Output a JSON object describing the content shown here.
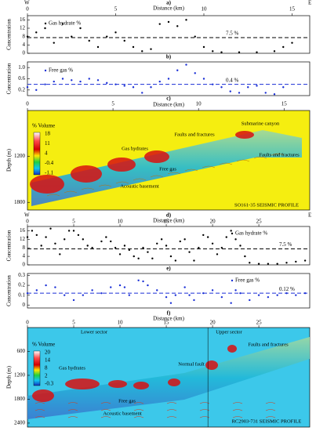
{
  "chart_data": [
    {
      "type": "scatter",
      "panel": "a)",
      "xlabel": "Distance (km)",
      "ends": [
        "W",
        "E"
      ],
      "ylabel": "Concentration",
      "legend": "Gas hydrate %",
      "color": "#000000",
      "x": [
        0,
        0.5,
        1,
        1.5,
        2,
        2.5,
        3,
        3.5,
        4,
        4.5,
        5,
        5.5,
        6,
        6.5,
        7,
        7.5,
        8,
        8.5,
        9,
        9.5,
        10,
        10.5,
        11,
        12,
        13,
        14,
        14.5,
        15
      ],
      "values": [
        8,
        10,
        12,
        5,
        14,
        8,
        12,
        6,
        3,
        8,
        10,
        6,
        3,
        1,
        2,
        14,
        15,
        13,
        16,
        8,
        3,
        1,
        0.5,
        0.5,
        0.5,
        1,
        3,
        5
      ],
      "xlim": [
        0,
        16
      ],
      "xticks": [
        0,
        5,
        10,
        15
      ],
      "ylim": [
        0,
        18
      ],
      "yticks": [
        0,
        4,
        8,
        12,
        16
      ],
      "ref_line": 7.5,
      "ref_label": "7.5 %"
    },
    {
      "type": "scatter",
      "panel": "b)",
      "ylabel": "Concentration",
      "legend": "Free gas %",
      "color": "#1a2fd6",
      "x": [
        0,
        0.5,
        1,
        1.5,
        2,
        2.5,
        3,
        3.5,
        4,
        4.5,
        5,
        5.5,
        6,
        6.5,
        7,
        7.5,
        8,
        8.5,
        9,
        9.5,
        10,
        10.5,
        11,
        11.5,
        12,
        12.5,
        13,
        13.5,
        14,
        14.5
      ],
      "values": [
        0.3,
        0.2,
        0.4,
        0.5,
        0.6,
        0.55,
        0.5,
        0.6,
        0.55,
        0.45,
        0.4,
        0.35,
        0.3,
        0.1,
        0.3,
        0.5,
        0.6,
        0.9,
        1.1,
        0.8,
        0.6,
        0.4,
        0.3,
        0.15,
        0.1,
        0.3,
        0.35,
        0.1,
        0.05,
        0.3
      ],
      "xlim": [
        0,
        16
      ],
      "ylim": [
        0,
        1.2
      ],
      "yticks": [
        0.2,
        0.6,
        {
          "value": 1,
          "label": "1.0"
        }
      ],
      "ref_line": 0.4,
      "ref_label": "0.4 %"
    },
    {
      "type": "seismic",
      "panel": "c)",
      "xlabel": "Distance (km)",
      "ylabel": "Depth (m)",
      "background": "#f5ee10",
      "xlim": [
        0,
        16.5
      ],
      "xticks": [
        0,
        5,
        10,
        15
      ],
      "ylim": [
        1900,
        600
      ],
      "yticks": [
        1200,
        1800
      ],
      "colorbar": {
        "title": "% Volume",
        "ticks": [
          18,
          11,
          4,
          -0.4,
          -1.1
        ]
      },
      "annotations": [
        "Gas hydrates",
        "Faults and fractures",
        "Submarine canyon",
        "Faults and fractures",
        "Free gas",
        "Acoustic basement",
        "SO161-35 SEISMIC PROFILE"
      ]
    },
    {
      "type": "scatter",
      "panel": "d)",
      "xlabel": "Distance (km)",
      "ends": [
        "W",
        "E"
      ],
      "ylabel": "Concentration",
      "legend": "Gas hydrate %",
      "color": "#000000",
      "x": [
        0,
        0.5,
        1,
        1.5,
        2,
        2.5,
        3,
        3.5,
        4,
        4.5,
        5,
        5.5,
        6,
        6.5,
        7,
        8,
        8.5,
        9,
        9.5,
        10,
        10.5,
        11,
        11.5,
        12,
        12.5,
        13,
        13.5,
        14,
        14.5,
        15,
        15.5,
        16,
        16.5,
        17,
        17.5,
        18,
        18.5,
        19,
        19.5,
        20,
        20.5,
        21,
        21.5,
        22,
        22.5,
        23,
        23.5,
        24,
        25,
        26,
        27,
        28,
        29,
        30
      ],
      "values": [
        13,
        16,
        14,
        9,
        13,
        17,
        10,
        5,
        12,
        16,
        16,
        14,
        12,
        9,
        8,
        11,
        13,
        11,
        8,
        5,
        9,
        7,
        4,
        3,
        8,
        6,
        3,
        10,
        12,
        9,
        4,
        2,
        11,
        12,
        6,
        2,
        8,
        14,
        13,
        10,
        5,
        8,
        13,
        16,
        12,
        9,
        4,
        1,
        0.5,
        0.5,
        0.5,
        1,
        1.5,
        2
      ],
      "xlim": [
        0,
        30.5
      ],
      "xticks": [
        0,
        5,
        10,
        15,
        20,
        25
      ],
      "ylim": [
        0,
        18
      ],
      "yticks": [
        0,
        4,
        8,
        12,
        16
      ],
      "ref_line": 7.5,
      "ref_label": "7.5 %"
    },
    {
      "type": "scatter",
      "panel": "e)",
      "ylabel": "Concentration",
      "legend": "Free gas %",
      "color": "#1a2fd6",
      "x": [
        0,
        1,
        2,
        3,
        4,
        5,
        6,
        7,
        8,
        9,
        10,
        10.5,
        11,
        12,
        12.5,
        13,
        14,
        15,
        15.5,
        16,
        17,
        17.5,
        18,
        19,
        20,
        21,
        22,
        22.5,
        23,
        24,
        25,
        26,
        27,
        28,
        29,
        30
      ],
      "values": [
        0.12,
        0.15,
        0.2,
        0.18,
        0.1,
        0.05,
        0.1,
        0.15,
        0.12,
        0.18,
        0.2,
        0.18,
        0.1,
        0.25,
        0.24,
        0.2,
        0.15,
        0.08,
        0.02,
        0.1,
        0.18,
        0.1,
        0.05,
        0.12,
        0.15,
        0.08,
        0.02,
        0.15,
        0.12,
        0.05,
        0.1,
        0.08,
        0.1,
        0.12,
        0.1,
        0.12
      ],
      "xlim": [
        0,
        30.5
      ],
      "ylim": [
        -0.03,
        0.32
      ],
      "yticks": [
        0,
        0.1,
        0.2,
        0.3
      ],
      "ref_line": 0.12,
      "ref_label": "0.12 %"
    },
    {
      "type": "seismic",
      "panel": "f)",
      "xlabel": "Distance (km)",
      "ylabel": "Depth (m)",
      "background": "#3cc8ea",
      "xlim": [
        0,
        30.5
      ],
      "xticks": [
        0,
        5,
        10,
        15,
        20,
        25
      ],
      "ylim": [
        2500,
        0
      ],
      "yticks": [
        600,
        1200,
        1800,
        2400
      ],
      "colorbar": {
        "title": "% Volume",
        "ticks": [
          20,
          14,
          8,
          2,
          -0.3
        ]
      },
      "annotations": [
        "Lower sector",
        "Upper sector",
        "Gas hydrates",
        "Free gas",
        "Acoustic basement",
        "Normal fault",
        "Faults and fractures",
        "RC2903-731 SEISMIC PROFILE"
      ]
    }
  ]
}
